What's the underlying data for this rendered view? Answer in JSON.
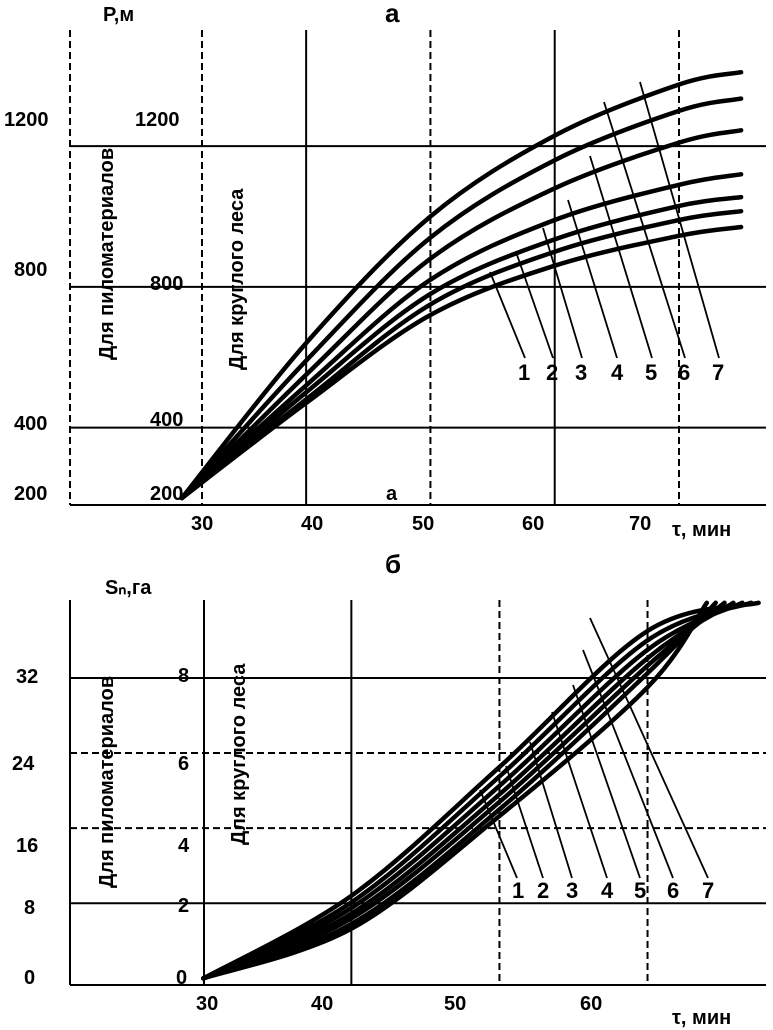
{
  "chart_data": [
    {
      "id": "a",
      "type": "line",
      "panel_label": "а",
      "y_label": "P,м",
      "x_label": "τ, мин",
      "x_ticks": [
        30,
        40,
        50,
        60,
        70
      ],
      "y_ticks_left": [
        200,
        400,
        800,
        1200
      ],
      "y_ticks_inner": [
        200,
        400,
        800,
        1200
      ],
      "axis_caption_left": "Для пиломатериалов",
      "axis_caption_inner": "Для круглого леса",
      "solid_gridlines_x": [
        40,
        60
      ],
      "dashed_gridlines_x": [
        50,
        70
      ],
      "point_marker": "а",
      "xlim": [
        21,
        77
      ],
      "ylim": [
        180,
        1530
      ],
      "series": [
        {
          "name": "1",
          "x": [
            30,
            40,
            50,
            60,
            70,
            75
          ],
          "y": [
            200,
            470,
            720,
            860,
            945,
            970
          ]
        },
        {
          "name": "2",
          "x": [
            30,
            40,
            50,
            60,
            70,
            75
          ],
          "y": [
            200,
            480,
            750,
            900,
            990,
            1015
          ]
        },
        {
          "name": "3",
          "x": [
            30,
            40,
            50,
            60,
            70,
            75
          ],
          "y": [
            200,
            500,
            780,
            935,
            1030,
            1055
          ]
        },
        {
          "name": "4",
          "x": [
            30,
            40,
            50,
            60,
            70,
            75
          ],
          "y": [
            200,
            520,
            820,
            990,
            1090,
            1120
          ]
        },
        {
          "name": "5",
          "x": [
            30,
            40,
            50,
            60,
            70,
            75
          ],
          "y": [
            200,
            550,
            880,
            1080,
            1210,
            1245
          ]
        },
        {
          "name": "6",
          "x": [
            30,
            40,
            50,
            60,
            70,
            75
          ],
          "y": [
            200,
            590,
            940,
            1160,
            1300,
            1335
          ]
        },
        {
          "name": "7",
          "x": [
            30,
            40,
            50,
            60,
            70,
            75
          ],
          "y": [
            200,
            640,
            1000,
            1230,
            1375,
            1410
          ]
        }
      ]
    },
    {
      "id": "b",
      "type": "line",
      "panel_label": "б",
      "y_label": "Sₙ,га",
      "x_label": "τ, мин",
      "x_ticks": [
        30,
        40,
        50,
        60
      ],
      "y_ticks_left": [
        0,
        8,
        16,
        24,
        32
      ],
      "y_ticks_inner": [
        0,
        2,
        4,
        6,
        8
      ],
      "axis_caption_left": "Для пиломатериалов",
      "axis_caption_inner": "Для круглого леса",
      "solid_gridlines_x": [
        40
      ],
      "dashed_gridlines_x": [
        50,
        60
      ],
      "xlim": [
        21,
        68
      ],
      "ylim": [
        -0.7,
        40.3
      ],
      "series": [
        {
          "name": "1",
          "x": [
            30,
            40,
            50,
            60,
            64
          ],
          "y": [
            0,
            5.3,
            17.3,
            31.0,
            40.0
          ]
        },
        {
          "name": "2",
          "x": [
            30,
            40,
            50,
            60,
            64.6
          ],
          "y": [
            0,
            5.8,
            18.0,
            32.5,
            40.0
          ]
        },
        {
          "name": "3",
          "x": [
            30,
            40,
            50,
            60,
            65.2
          ],
          "y": [
            0,
            6.4,
            18.8,
            33.3,
            40.0
          ]
        },
        {
          "name": "4",
          "x": [
            30,
            40,
            50,
            60,
            65.8
          ],
          "y": [
            0,
            6.9,
            19.6,
            34.1,
            40.0
          ]
        },
        {
          "name": "5",
          "x": [
            30,
            40,
            50,
            60,
            66.4
          ],
          "y": [
            0,
            7.5,
            20.5,
            35.0,
            40.0
          ]
        },
        {
          "name": "6",
          "x": [
            30,
            40,
            50,
            60,
            67.0
          ],
          "y": [
            0,
            8.1,
            21.5,
            36.0,
            40.0
          ]
        },
        {
          "name": "7",
          "x": [
            30,
            40,
            50,
            60,
            67.5
          ],
          "y": [
            0,
            8.8,
            22.5,
            37.0,
            40.0
          ]
        }
      ]
    }
  ]
}
